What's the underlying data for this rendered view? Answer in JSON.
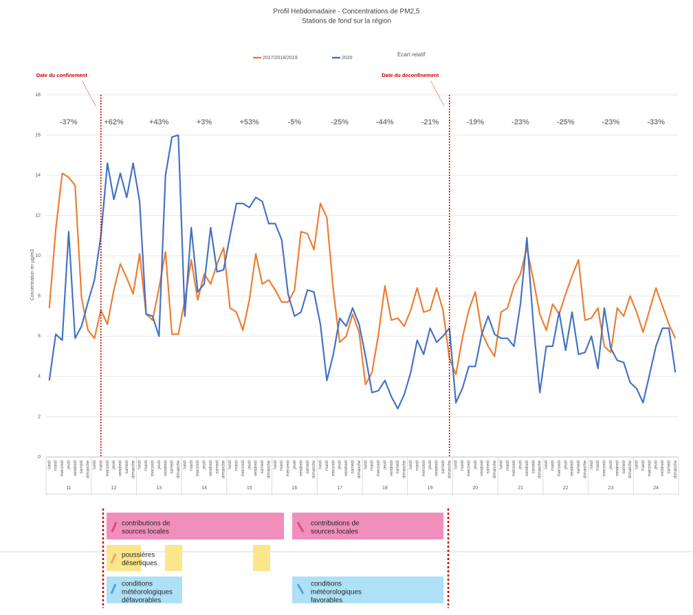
{
  "chart_data": {
    "type": "line",
    "title": "Profil Hebdomadaire - Concentrations de PM2,5",
    "subtitle": "Stations de fond sur la région",
    "y_label": "Concentration en µg/m3",
    "legend_note": "Ecart relatif",
    "categories": [
      "lundi",
      "mardi",
      "mercredi",
      "jeudi",
      "vendredi",
      "samedi",
      "dimanche",
      "lundi",
      "mardi",
      "mercredi",
      "jeudi",
      "vendredi",
      "samedi",
      "dimanche",
      "lundi",
      "mardi",
      "mercredi",
      "jeudi",
      "vendredi",
      "samedi",
      "dimanche",
      "lundi",
      "mardi",
      "mercredi",
      "jeudi",
      "vendredi",
      "samedi",
      "dimanche",
      "lundi",
      "mardi",
      "mercredi",
      "jeudi",
      "vendredi",
      "samedi",
      "dimanche",
      "lundi",
      "mardi",
      "mercredi",
      "jeudi",
      "vendredi",
      "samedi",
      "dimanche",
      "lundi",
      "mardi",
      "mercredi",
      "jeudi",
      "vendredi",
      "samedi",
      "dimanche",
      "lundi",
      "mardi",
      "mercredi",
      "jeudi",
      "vendredi",
      "samedi",
      "dimanche",
      "lundi",
      "mardi",
      "mercredi",
      "jeudi",
      "vendredi",
      "samedi",
      "dimanche",
      "lundi",
      "mardi",
      "mercredi",
      "jeudi",
      "vendredi",
      "samedi",
      "dimanche",
      "lundi",
      "mardi",
      "mercredi",
      "jeudi",
      "vendredi",
      "samedi",
      "dimanche",
      "lundi",
      "mardi",
      "mercredi",
      "jeudi",
      "vendredi",
      "samedi",
      "dimanche",
      "lundi",
      "mardi",
      "mercredi",
      "jeudi",
      "vendredi",
      "samedi",
      "dimanche",
      "lundi",
      "mardi",
      "mercredi",
      "jeudi",
      "vendredi",
      "samedi",
      "dimanche"
    ],
    "weeks": [
      "11",
      "12",
      "13",
      "14",
      "15",
      "16",
      "17",
      "18",
      "19",
      "20",
      "21",
      "22",
      "23",
      "24"
    ],
    "relative_change_labels": [
      "-37%",
      "+62%",
      "+43%",
      "+3%",
      "+53%",
      "-5%",
      "-25%",
      "-44%",
      "-21%",
      "-19%",
      "-23%",
      "-25%",
      "-23%",
      "-33%"
    ],
    "series": [
      {
        "name": "2017/2018/2019",
        "color": "#ed7d31",
        "values": [
          7.4,
          11.3,
          14.1,
          13.9,
          13.5,
          7.9,
          6.3,
          5.9,
          7.3,
          6.6,
          8.3,
          9.6,
          8.9,
          8.1,
          10.1,
          7.1,
          6.8,
          8.4,
          10.2,
          6.1,
          6.1,
          7.8,
          9.8,
          7.8,
          9.1,
          8.6,
          9.6,
          10.4,
          7.4,
          7.2,
          6.3,
          7.8,
          10.1,
          8.6,
          8.8,
          8.3,
          7.7,
          7.7,
          8.3,
          11.2,
          11.1,
          10.3,
          12.6,
          11.9,
          8.3,
          5.7,
          6.0,
          7.1,
          6.2,
          3.6,
          4.2,
          6.1,
          8.5,
          6.8,
          6.9,
          6.5,
          7.3,
          8.4,
          7.2,
          7.3,
          8.4,
          7.3,
          4.9,
          4.1,
          5.9,
          7.3,
          8.2,
          6.2,
          5.5,
          5.0,
          7.2,
          7.4,
          8.5,
          9.1,
          10.4,
          8.8,
          7.1,
          6.3,
          7.6,
          7.1,
          8.1,
          9.0,
          9.8,
          6.8,
          6.9,
          7.4,
          5.5,
          5.2,
          7.4,
          7.0,
          8.0,
          7.2,
          6.2,
          7.3,
          8.4,
          7.5,
          6.6,
          5.9
        ]
      },
      {
        "name": "2020",
        "color": "#4472c4",
        "values": [
          3.8,
          6.1,
          5.8,
          11.2,
          5.9,
          6.5,
          7.7,
          8.8,
          11.0,
          14.6,
          12.8,
          14.1,
          12.9,
          14.6,
          12.7,
          7.1,
          7.0,
          6.0,
          14.0,
          15.9,
          16.0,
          7.0,
          11.4,
          8.2,
          8.6,
          11.4,
          9.2,
          9.3,
          11.0,
          12.6,
          12.6,
          12.4,
          12.9,
          12.7,
          11.6,
          11.6,
          10.8,
          8.1,
          7.0,
          7.2,
          8.3,
          8.2,
          6.6,
          3.8,
          5.1,
          6.9,
          6.5,
          7.4,
          6.6,
          5.0,
          3.2,
          3.3,
          3.8,
          3.0,
          2.4,
          3.1,
          4.2,
          5.8,
          5.1,
          6.4,
          5.7,
          6.0,
          6.4,
          2.7,
          3.4,
          4.5,
          4.5,
          6.1,
          7.0,
          6.1,
          5.9,
          5.9,
          5.5,
          7.6,
          10.9,
          6.6,
          3.2,
          5.5,
          5.5,
          7.2,
          5.3,
          7.2,
          5.1,
          5.2,
          6.0,
          4.4,
          7.4,
          5.4,
          4.8,
          4.7,
          3.7,
          3.4,
          2.7,
          4.1,
          5.5,
          6.4,
          6.4,
          4.2
        ]
      }
    ],
    "ylim": [
      0,
      18
    ],
    "yticks": [
      0,
      2,
      4,
      6,
      8,
      10,
      12,
      14,
      16,
      18
    ],
    "grid": true,
    "events": [
      {
        "label": "Date du confinement",
        "week": "12",
        "day": "mardi"
      },
      {
        "label": "Date du deconfinement",
        "week": "19",
        "day": "dimanche"
      }
    ],
    "factor_boxes": [
      {
        "lines": [
          "contributions de",
          "sources locales"
        ]
      },
      {
        "lines": [
          "poussières",
          "désertiques"
        ]
      },
      {
        "lines": [
          "conditions",
          "météorologiques",
          "défavorables"
        ]
      },
      {
        "lines": [
          "contributions de",
          "sources locales"
        ]
      },
      {
        "lines": [
          "conditions",
          "météorologiques",
          "favorables"
        ]
      }
    ]
  }
}
